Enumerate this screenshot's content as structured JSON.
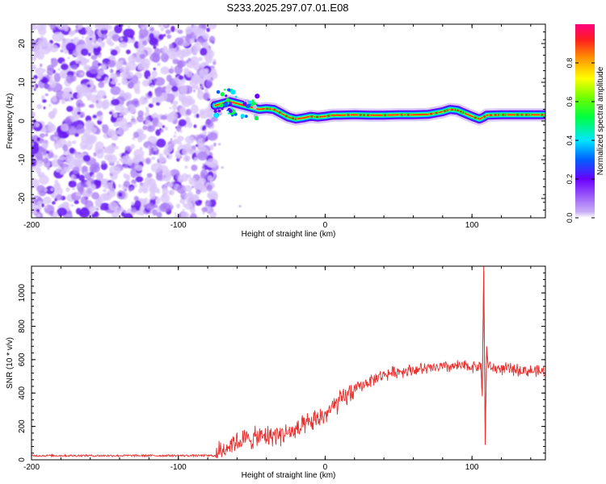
{
  "title": "S233.2025.297.07.01.E08",
  "chart_data": [
    {
      "type": "heatmap",
      "name": "spectrogram",
      "xlabel": "Height of straight line (km)",
      "ylabel": "Frequency (Hz)",
      "xlim": [
        -200,
        150
      ],
      "ylim": [
        -25,
        25
      ],
      "xticks": [
        -200,
        -100,
        0,
        100
      ],
      "yticks": [
        -20,
        -10,
        0,
        10,
        20
      ],
      "noise_region_x": [
        -200,
        -75
      ],
      "signal_ridge": {
        "x": [
          -75,
          -70,
          -65,
          -60,
          -55,
          -50,
          -45,
          -40,
          -35,
          -30,
          -25,
          -20,
          -15,
          -10,
          -5,
          0,
          5,
          10,
          20,
          30,
          40,
          50,
          60,
          70,
          80,
          85,
          90,
          95,
          100,
          105,
          108,
          110,
          120,
          130,
          140,
          150
        ],
        "y": [
          4,
          4.5,
          5,
          4.5,
          4,
          3.5,
          3,
          3.2,
          3,
          2,
          1,
          0.5,
          0.8,
          1.2,
          1,
          1.2,
          1.5,
          1.5,
          1.6,
          1.5,
          1.5,
          1.6,
          1.6,
          1.7,
          2.4,
          3,
          2.8,
          2,
          1.2,
          0.5,
          1,
          1.5,
          1.6,
          1.6,
          1.6,
          1.6
        ]
      },
      "colorbar": {
        "label": "Normalized spectral amplitude",
        "range": [
          0,
          1
        ],
        "ticks": [
          "0.0",
          "0.2",
          "0.4",
          "0.6",
          "0.8"
        ]
      }
    },
    {
      "type": "line",
      "name": "snr",
      "xlabel": "Height of straight line (km)",
      "ylabel": "SNR (10 * v/v)",
      "xlim": [
        -200,
        150
      ],
      "ylim": [
        0,
        1160
      ],
      "xticks": [
        -200,
        -100,
        0,
        100
      ],
      "yticks": [
        0,
        200,
        400,
        600,
        800,
        1000
      ],
      "color": "#e8302e",
      "envelope": {
        "x": [
          -200,
          -75,
          -64,
          -55,
          -40,
          -20,
          -10,
          0,
          10,
          20,
          30,
          40,
          50,
          60,
          70,
          80,
          90,
          100,
          105,
          115,
          130,
          150
        ],
        "y": [
          25,
          25,
          100,
          120,
          140,
          170,
          220,
          270,
          350,
          420,
          470,
          510,
          530,
          540,
          545,
          555,
          560,
          560,
          560,
          550,
          540,
          525
        ]
      },
      "spike": {
        "x": [
          106,
          107,
          108,
          109,
          110,
          111
        ],
        "y": [
          580,
          380,
          1160,
          90,
          680,
          560
        ]
      }
    }
  ]
}
